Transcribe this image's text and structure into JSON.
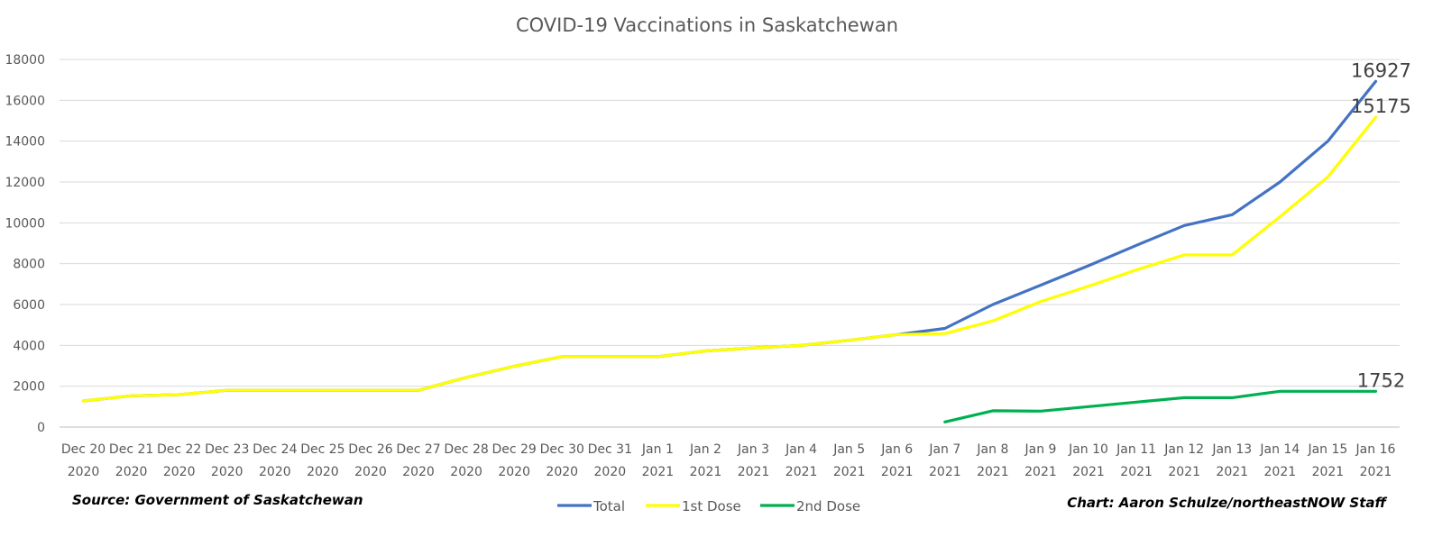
{
  "chart_data": {
    "type": "line",
    "title": "COVID-19 Vaccinations in Saskatchewan",
    "categories": [
      [
        "Dec 20",
        "2020"
      ],
      [
        "Dec 21",
        "2020"
      ],
      [
        "Dec 22",
        "2020"
      ],
      [
        "Dec 23",
        "2020"
      ],
      [
        "Dec 24",
        "2020"
      ],
      [
        "Dec 25",
        "2020"
      ],
      [
        "Dec 26",
        "2020"
      ],
      [
        "Dec 27",
        "2020"
      ],
      [
        "Dec 28",
        "2020"
      ],
      [
        "Dec 29",
        "2020"
      ],
      [
        "Dec 30",
        "2020"
      ],
      [
        "Dec 31",
        "2020"
      ],
      [
        "Jan 1",
        "2021"
      ],
      [
        "Jan 2",
        "2021"
      ],
      [
        "Jan 3",
        "2021"
      ],
      [
        "Jan 4",
        "2021"
      ],
      [
        "Jan 5",
        "2021"
      ],
      [
        "Jan 6",
        "2021"
      ],
      [
        "Jan 7",
        "2021"
      ],
      [
        "Jan 8",
        "2021"
      ],
      [
        "Jan 9",
        "2021"
      ],
      [
        "Jan 10",
        "2021"
      ],
      [
        "Jan 11",
        "2021"
      ],
      [
        "Jan 12",
        "2021"
      ],
      [
        "Jan 13",
        "2021"
      ],
      [
        "Jan 14",
        "2021"
      ],
      [
        "Jan 15",
        "2021"
      ],
      [
        "Jan 16",
        "2021"
      ]
    ],
    "series": [
      {
        "name": "Total",
        "color": "#4472C4",
        "values": [
          1280,
          1530,
          1590,
          1800,
          1800,
          1800,
          1800,
          1800,
          2430,
          2980,
          3450,
          3450,
          3450,
          3730,
          3880,
          4000,
          4250,
          4530,
          4830,
          6000,
          6950,
          7900,
          8900,
          9870,
          10400,
          12000,
          14000,
          16927
        ],
        "end_label": "16927"
      },
      {
        "name": "1st Dose",
        "color": "#FFFF00",
        "values": [
          1280,
          1530,
          1590,
          1800,
          1800,
          1800,
          1800,
          1800,
          2430,
          2980,
          3450,
          3450,
          3450,
          3730,
          3880,
          4000,
          4250,
          4530,
          4580,
          5200,
          6150,
          6900,
          7700,
          8430,
          8430,
          10300,
          12250,
          15175
        ],
        "end_label": "15175"
      },
      {
        "name": "2nd Dose",
        "color": "#00B050",
        "values": [
          null,
          null,
          null,
          null,
          null,
          null,
          null,
          null,
          null,
          null,
          null,
          null,
          null,
          null,
          null,
          null,
          null,
          null,
          250,
          800,
          780,
          1000,
          1220,
          1440,
          1440,
          1752,
          1752,
          1752
        ],
        "end_label": "1752"
      }
    ],
    "ylim": [
      0,
      18000
    ],
    "yticks": [
      0,
      2000,
      4000,
      6000,
      8000,
      10000,
      12000,
      14000,
      16000,
      18000
    ],
    "grid": "horizontal",
    "legend": "bottom-center",
    "xlabel": "",
    "ylabel": ""
  },
  "footer": {
    "source": "Source: Government of Saskatchewan",
    "credit": "Chart: Aaron Schulze/northeastNOW Staff"
  }
}
